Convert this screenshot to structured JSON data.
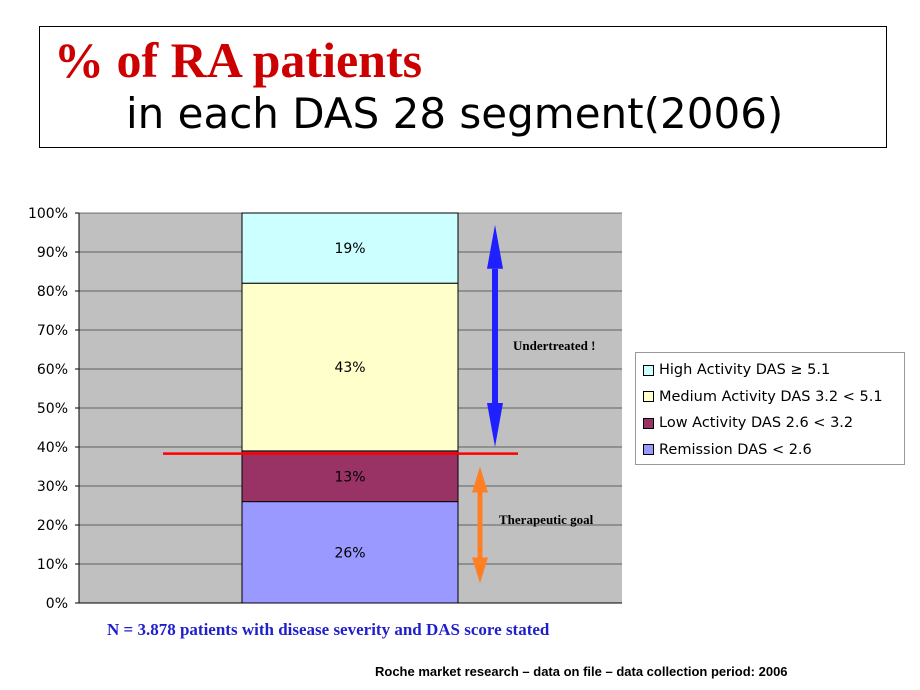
{
  "header": {
    "title_line1": "% of RA patients",
    "title_line2": "in each DAS 28  segment(2006)"
  },
  "colors": {
    "title": "#cc0000",
    "plot_background": "#c0c0c0",
    "goal_line": "#ff0000",
    "undertreated_arrow": "#2020ff",
    "goal_arrow": "#ff7f27",
    "footnote": "#1f1fcc"
  },
  "chart_data": {
    "type": "bar",
    "stacked": true,
    "ylim": [
      0,
      100
    ],
    "yticks": [
      "0%",
      "10%",
      "20%",
      "30%",
      "40%",
      "50%",
      "60%",
      "70%",
      "80%",
      "90%",
      "100%"
    ],
    "series": [
      {
        "name": "Remission  DAS < 2.6",
        "value": 26,
        "label": "26%",
        "color": "#9999ff"
      },
      {
        "name": "Low Activity DAS 2.6 < 3.2",
        "value": 13,
        "label": "13%",
        "color": "#993366"
      },
      {
        "name": "Medium Activity DAS 3.2 < 5.1",
        "value": 43,
        "label": "43%",
        "color": "#ffffcc"
      },
      {
        "name": "High Activity DAS ≥ 5.1",
        "value": 19,
        "label": "19%",
        "color": "#ccffff"
      }
    ],
    "reference_line": {
      "value": 38.3
    },
    "annotations": {
      "undertreated": {
        "text": "Undertreated !",
        "from": 40,
        "to": 97
      },
      "therapeutic_goal": {
        "text": "Therapeutic goal",
        "from": 5,
        "to": 35
      }
    },
    "legend_position": "right"
  },
  "footnote": "N = 3.878 patients with disease severity and DAS score stated",
  "source": "Roche market research – data on file – data collection period: 2006"
}
